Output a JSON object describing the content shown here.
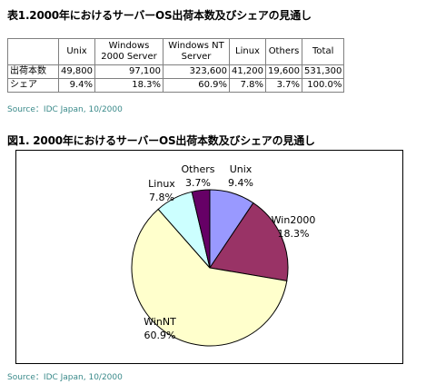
{
  "table_title": "表1.2000年におけるサーバーOS出荷本数及びシェアの見通し",
  "figure_title": "図1. 2000年におけるサーバーOS出荷本数及びシェアの見通し",
  "source": "Source：IDC Japan, 10/2000",
  "table": {
    "headers": [
      "Unix",
      "Windows 2000 Server",
      "Windows NT Server",
      "Linux",
      "Others",
      "Total"
    ],
    "rows": [
      {
        "label": "出荷本数",
        "cells": [
          "49,800",
          "97,100",
          "323,600",
          "41,200",
          "19,600",
          "531,300"
        ]
      },
      {
        "label": "シェア",
        "cells": [
          "9.4%",
          "18.3%",
          "60.9%",
          "7.8%",
          "3.7%",
          "100.0%"
        ]
      }
    ]
  },
  "chart_data": {
    "type": "pie",
    "title": "図1. 2000年におけるサーバーOS出荷本数及びシェアの見通し",
    "slices": [
      {
        "label": "Unix",
        "value": 9.4,
        "value_label": "9.4%",
        "color": "#9999ff"
      },
      {
        "label": "Win2000",
        "value": 18.3,
        "value_label": "18.3%",
        "color": "#993366"
      },
      {
        "label": "WinNT",
        "value": 60.9,
        "value_label": "60.9%",
        "color": "#ffffcc"
      },
      {
        "label": "Linux",
        "value": 7.8,
        "value_label": "7.8%",
        "color": "#ccffff"
      },
      {
        "label": "Others",
        "value": 3.7,
        "value_label": "3.7%",
        "color": "#660066"
      }
    ],
    "start_angle_deg": 0,
    "direction": "clockwise"
  }
}
